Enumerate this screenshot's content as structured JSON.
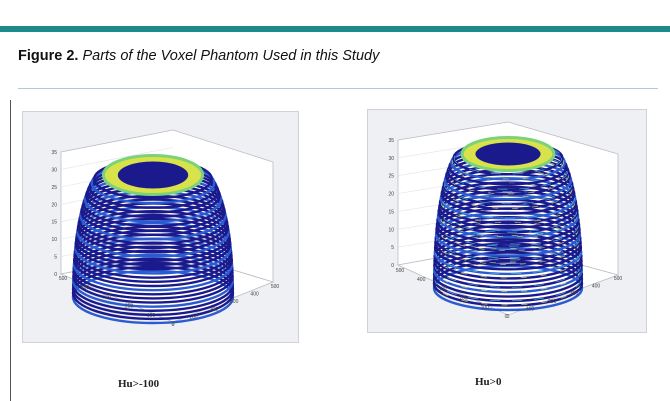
{
  "figure": {
    "label": "Figure 2",
    "separator": ".",
    "title": "Parts of the Voxel Phantom Used in this Study"
  },
  "panels": [
    {
      "caption": "Hu>-100",
      "z_ticks": [
        "0",
        "5",
        "10",
        "15",
        "20",
        "25",
        "30",
        "35"
      ],
      "x_ticks": [
        "0",
        "100",
        "200",
        "300",
        "400",
        "500"
      ],
      "y_ticks": [
        "0",
        "100",
        "200",
        "300",
        "400",
        "500"
      ]
    },
    {
      "caption": "Hu>0",
      "z_ticks": [
        "0",
        "5",
        "10",
        "15",
        "20",
        "25",
        "30",
        "35"
      ],
      "x_ticks": [
        "0",
        "100",
        "200",
        "300",
        "400",
        "500"
      ],
      "y_ticks": [
        "0",
        "100",
        "200",
        "300",
        "400",
        "500"
      ]
    }
  ],
  "colors": {
    "accent_bar": "#1f8a8c",
    "rule": "#a8cfd2",
    "contour_dark": "#1a1a8c",
    "contour_mid": "#2b5bd0",
    "contour_green": "#7bd27a",
    "contour_yellow": "#d8e24a",
    "contour_cyan": "#4fc6d6"
  }
}
